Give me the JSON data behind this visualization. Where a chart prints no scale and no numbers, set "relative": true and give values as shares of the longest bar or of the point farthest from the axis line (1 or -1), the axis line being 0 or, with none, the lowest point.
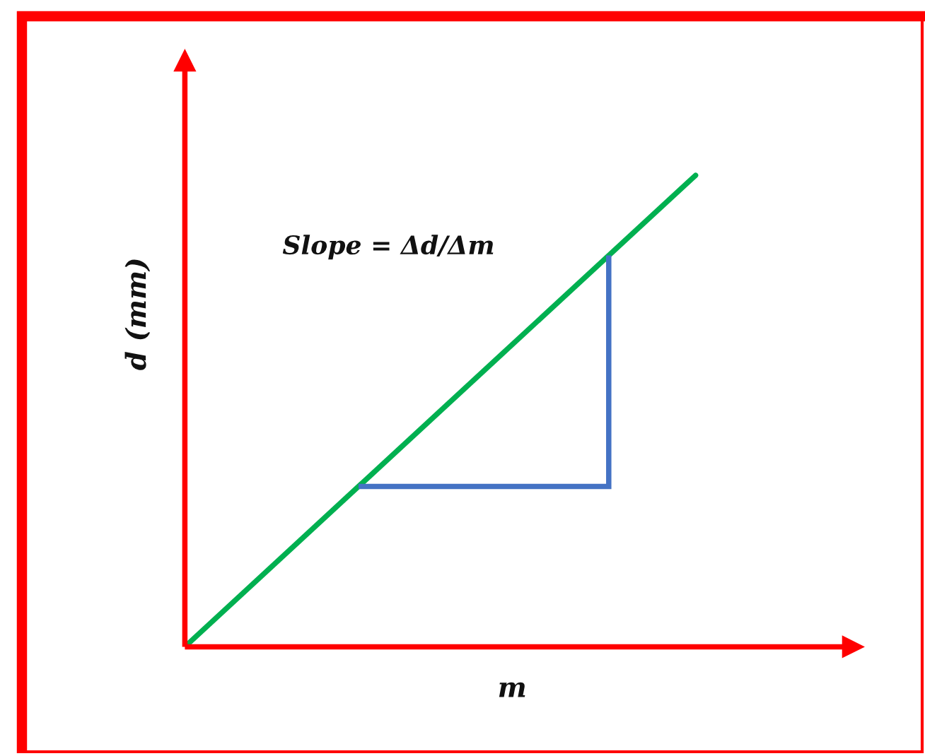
{
  "chart_data": {
    "type": "line",
    "xlabel": "m",
    "ylabel": "d (mm)",
    "annotations": [
      "Slope = Δd/Δm"
    ],
    "relative": true,
    "line_style": "solid",
    "categories": [
      null,
      null
    ],
    "series": [
      {
        "color": "#00b050",
        "values": [
          0,
          1
        ]
      }
    ]
  }
}
